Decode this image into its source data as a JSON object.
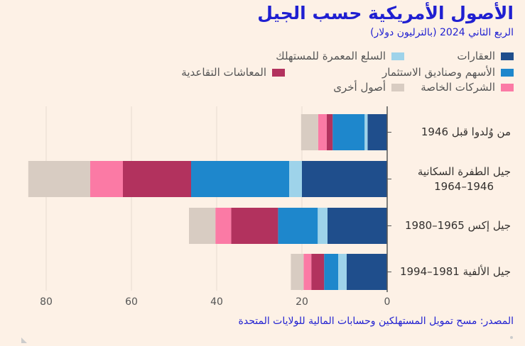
{
  "title": "الأصول الأمريكية حسب الجيل",
  "subtitle": "الربع الثاني 2024 (بالترليون دولار)",
  "source": "المصدر:  مسح تمويل المستهلكين وحسابات المالية للولايات المتحدة",
  "chart_data": {
    "type": "bar",
    "orientation": "horizontal",
    "stacked": true,
    "categories": [
      [
        "من وُلدوا قبل 1946"
      ],
      [
        "جيل الطفرة السكانية",
        "1946–1964"
      ],
      [
        "جيل إكس 1965–1980"
      ],
      [
        "جيل الألفية 1981–1994"
      ]
    ],
    "series": [
      {
        "name": "العقارات",
        "color": "#1f4e8c",
        "values": [
          4.6,
          20.0,
          14.0,
          9.5
        ]
      },
      {
        "name": "السلع المعمرة للمستهلك",
        "color": "#9ed3ea",
        "values": [
          0.7,
          3.0,
          2.3,
          2.0
        ]
      },
      {
        "name": "الأسهم وصناديق الاستثمار",
        "color": "#1e87cc",
        "values": [
          7.5,
          23.0,
          9.3,
          3.3
        ]
      },
      {
        "name": "المعاشات التقاعدية",
        "color": "#b2325e",
        "values": [
          1.4,
          16.0,
          11.0,
          3.0
        ]
      },
      {
        "name": "الشركات الخاصة",
        "color": "#fb7aa5",
        "values": [
          2.0,
          7.7,
          3.7,
          1.8
        ]
      },
      {
        "name": "أصول أخرى",
        "color": "#d8ccc2",
        "values": [
          4.0,
          14.5,
          6.2,
          3.0
        ]
      }
    ],
    "xlim": [
      0,
      85
    ],
    "xticks": [
      0,
      20,
      40,
      60,
      80
    ],
    "x_direction": "right-to-left",
    "grid": true,
    "legend_position": "top"
  }
}
